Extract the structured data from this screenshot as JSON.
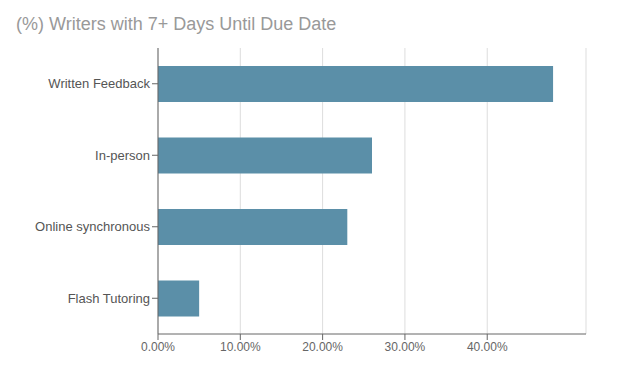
{
  "chart_data": {
    "type": "bar",
    "orientation": "horizontal",
    "title": "(%) Writers with 7+ Days Until Due Date",
    "categories": [
      "Flash Tutoring",
      "Online synchronous",
      "In-person",
      "Written Feedback"
    ],
    "values": [
      0.05,
      0.23,
      0.26,
      0.48
    ],
    "color": "#5b8fa8",
    "xlim": [
      0,
      0.52
    ],
    "xticks": [
      {
        "value": 0.0,
        "label": "0.00%"
      },
      {
        "value": 0.1,
        "label": "10.00%"
      },
      {
        "value": 0.2,
        "label": "20.00%"
      },
      {
        "value": 0.3,
        "label": "30.00%"
      },
      {
        "value": 0.4,
        "label": "40.00%"
      }
    ],
    "grid": true
  }
}
